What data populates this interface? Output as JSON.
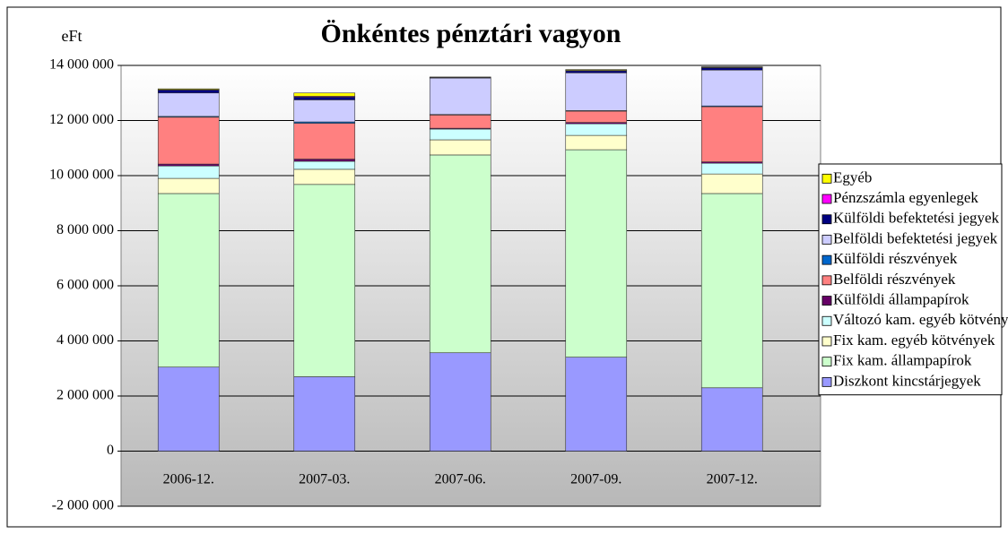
{
  "chart_data": {
    "type": "stacked_bar",
    "title": "Önkéntes pénztári vagyon",
    "y_label": "eFt",
    "categories": [
      "2006-12.",
      "2007-03.",
      "2007-06.",
      "2007-09.",
      "2007-12."
    ],
    "ylim": [
      -2000000,
      14000000
    ],
    "yticks": [
      {
        "value": -2000000,
        "label": "-2 000 000"
      },
      0,
      {
        "value": 2000000,
        "label": "2 000 000"
      },
      {
        "value": 4000000,
        "label": "4 000 000"
      },
      {
        "value": 6000000,
        "label": "6 000 000"
      },
      {
        "value": 8000000,
        "label": "8 000 000"
      },
      {
        "value": 10000000,
        "label": "10 000 000"
      },
      {
        "value": 12000000,
        "label": "12 000 000"
      },
      {
        "value": 14000000,
        "label": "14 000 000"
      }
    ],
    "grid": true,
    "legend": "right",
    "series": [
      {
        "name": "Diszkont kincstárjegyek",
        "color": "#9999ff",
        "values": [
          3050000,
          2700000,
          3570000,
          3410000,
          2300000
        ]
      },
      {
        "name": "Fix kam. állampapírok",
        "color": "#ccffcc",
        "values": [
          6300000,
          6980000,
          7180000,
          7530000,
          7050000
        ]
      },
      {
        "name": "Fix kam. egyéb kötvények",
        "color": "#ffffcc",
        "values": [
          550000,
          550000,
          550000,
          520000,
          710000
        ]
      },
      {
        "name": "Változó kam. egyéb kötvények",
        "color": "#ccffff",
        "values": [
          450000,
          290000,
          390000,
          420000,
          390000
        ]
      },
      {
        "name": "Külföldi állampapírok",
        "color": "#660066",
        "values": [
          70000,
          80000,
          30000,
          50000,
          50000
        ]
      },
      {
        "name": "Belföldi részvények",
        "color": "#ff8080",
        "values": [
          1700000,
          1300000,
          480000,
          410000,
          2000000
        ]
      },
      {
        "name": "Külföldi részvények",
        "color": "#0066cc",
        "values": [
          30000,
          50000,
          20000,
          20000,
          30000
        ]
      },
      {
        "name": "Belföldi befektetési jegyek",
        "color": "#ccccff",
        "values": [
          850000,
          800000,
          1320000,
          1370000,
          1300000
        ]
      },
      {
        "name": "Külföldi befektetési jegyek",
        "color": "#000080",
        "values": [
          100000,
          100000,
          20000,
          70000,
          80000
        ]
      },
      {
        "name": "Pénzszámla egyenlegek",
        "color": "#ff00ff",
        "values": [
          20000,
          30000,
          10000,
          20000,
          20000
        ]
      },
      {
        "name": "Egyéb",
        "color": "#ffff00",
        "values": [
          30000,
          120000,
          10000,
          30000,
          20000
        ]
      }
    ]
  }
}
